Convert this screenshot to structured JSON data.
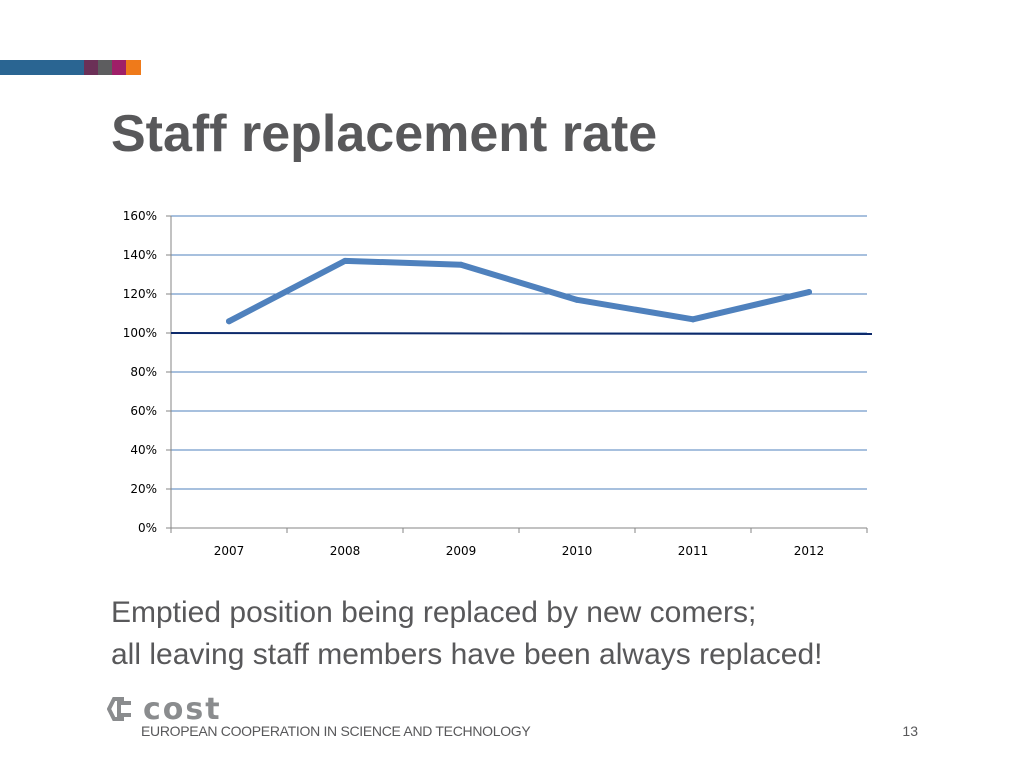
{
  "slide": {
    "title": "Staff replacement rate",
    "caption_line1": "Emptied position being replaced by new comers;",
    "caption_line2": "all leaving staff members have been always replaced!",
    "footer_text": "EUROPEAN COOPERATION IN SCIENCE AND TECHNOLOGY",
    "logo_text": "cost",
    "page_number": "13",
    "top_bar_colors": [
      "#2a6592",
      "#6b3057",
      "#5d5d5f",
      "#9f1f68",
      "#ef7a1a"
    ]
  },
  "chart_data": {
    "type": "line",
    "categories": [
      "2007",
      "2008",
      "2009",
      "2010",
      "2011",
      "2012"
    ],
    "series": [
      {
        "name": "",
        "values": [
          106,
          137,
          135,
          117,
          107,
          121
        ],
        "color": "#4f81bd"
      }
    ],
    "reference_line": {
      "value": 100,
      "color": "#0d2a6b"
    },
    "ylim": [
      0,
      160
    ],
    "ytick_values": [
      0,
      20,
      40,
      60,
      80,
      100,
      120,
      140,
      160
    ],
    "ytick_labels": [
      "0%",
      "20%",
      "40%",
      "60%",
      "80%",
      "100%",
      "120%",
      "140%",
      "160%"
    ],
    "grid": true,
    "gridline_color": "#4f81bd"
  }
}
